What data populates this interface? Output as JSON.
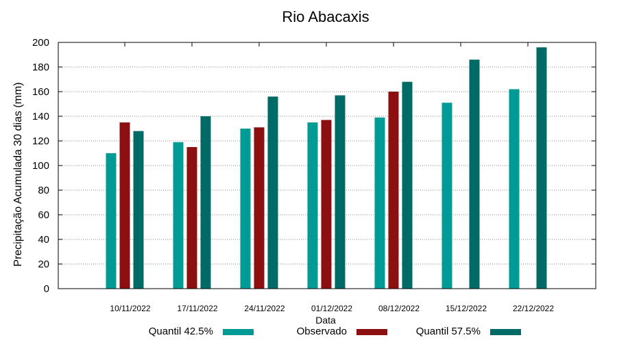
{
  "chart_data": {
    "type": "bar",
    "title": "Rio Abacaxis",
    "xlabel": "Data",
    "ylabel": "Precipitação Acumulada 30 dias (mm)",
    "ylim": [
      0,
      200
    ],
    "yticks": [
      "0",
      "20",
      "40",
      "60",
      "80",
      "100",
      "120",
      "140",
      "160",
      "180",
      "200"
    ],
    "grid": true,
    "legend_position": "bottom",
    "categories": [
      "10/11/2022",
      "17/11/2022",
      "24/11/2022",
      "01/12/2022",
      "08/12/2022",
      "15/12/2022",
      "22/12/2022"
    ],
    "series": [
      {
        "name": "Quantil 42.5%",
        "color": "#009b95",
        "values": [
          110,
          119,
          130,
          135,
          139,
          151,
          162
        ]
      },
      {
        "name": "Observado",
        "color": "#8c1010",
        "values": [
          135,
          115,
          131,
          137,
          160,
          null,
          null
        ]
      },
      {
        "name": "Quantil 57.5%",
        "color": "#006a66",
        "values": [
          128,
          140,
          156,
          157,
          168,
          186,
          196
        ]
      }
    ]
  }
}
